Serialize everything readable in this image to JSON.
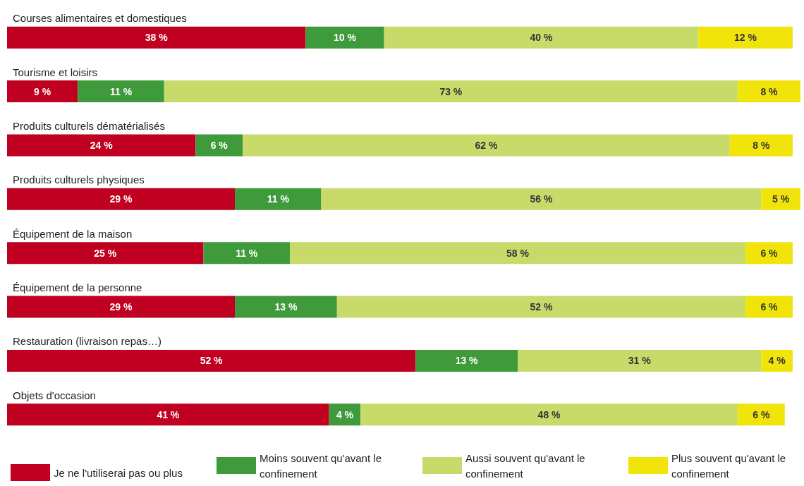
{
  "chart_data": {
    "type": "bar",
    "orientation": "horizontal",
    "stacked": true,
    "xlim": [
      0,
      101
    ],
    "tick_labels": "y",
    "grid": false,
    "legend": "bottom",
    "categories": [
      "Courses alimentaires et domestiques",
      "Tourisme et loisirs",
      "Produits culturels dématérialisés",
      "Produits culturels physiques",
      "Équipement de la maison",
      "Équipement de la personne",
      "Restauration (livraison repas…)",
      "Objets d'occasion"
    ],
    "series": [
      {
        "name": "Je ne l'utiliserai pas ou plus",
        "color": "#c00020",
        "values": [
          38,
          9,
          24,
          29,
          25,
          29,
          52,
          41
        ],
        "value_labels": [
          "38 %",
          "9 %",
          "24 %",
          "29 %",
          "25 %",
          "29 %",
          "52 %",
          "41 %"
        ]
      },
      {
        "name": "Moins souvent qu'avant le confinement",
        "color": "#3f9a3c",
        "values": [
          10,
          11,
          6,
          11,
          11,
          13,
          13,
          4
        ],
        "value_labels": [
          "10 %",
          "11 %",
          "6 %",
          "11 %",
          "11 %",
          "13 %",
          "13 %",
          "4 %"
        ]
      },
      {
        "name": "Aussi souvent qu'avant le confinement",
        "color": "#c8da6a",
        "values": [
          40,
          73,
          62,
          56,
          58,
          52,
          31,
          48
        ],
        "value_labels": [
          "40 %",
          "73 %",
          "62 %",
          "56 %",
          "58 %",
          "52 %",
          "31 %",
          "48 %"
        ]
      },
      {
        "name": "Plus souvent qu'avant le confinement",
        "color": "#f1e40a",
        "values": [
          12,
          8,
          8,
          5,
          6,
          6,
          4,
          6
        ],
        "value_labels": [
          "12 %",
          "8 %",
          "8 %",
          "5 %",
          "6 %",
          "6 %",
          "4 %",
          "6 %"
        ]
      }
    ]
  }
}
